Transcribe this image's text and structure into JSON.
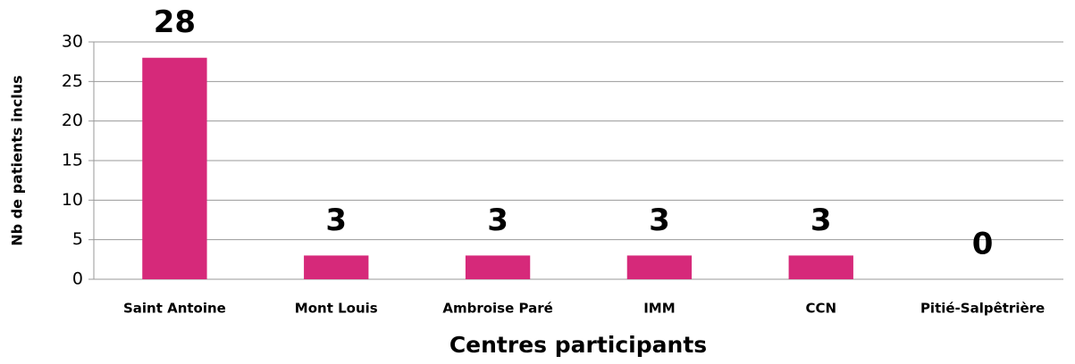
{
  "chart_data": {
    "type": "bar",
    "xlabel": "Centres participants",
    "ylabel": "Nb de patients inclus",
    "categories": [
      "Saint Antoine",
      "Mont Louis",
      "Ambroise Paré",
      "IMM",
      "CCN",
      "Pitié-Salpêtrière"
    ],
    "values": [
      28,
      3,
      3,
      3,
      3,
      0
    ],
    "color": "#d6297a",
    "ylim": [
      0,
      30
    ],
    "yticks": [
      0,
      5,
      10,
      15,
      20,
      25,
      30
    ],
    "grid": true
  }
}
